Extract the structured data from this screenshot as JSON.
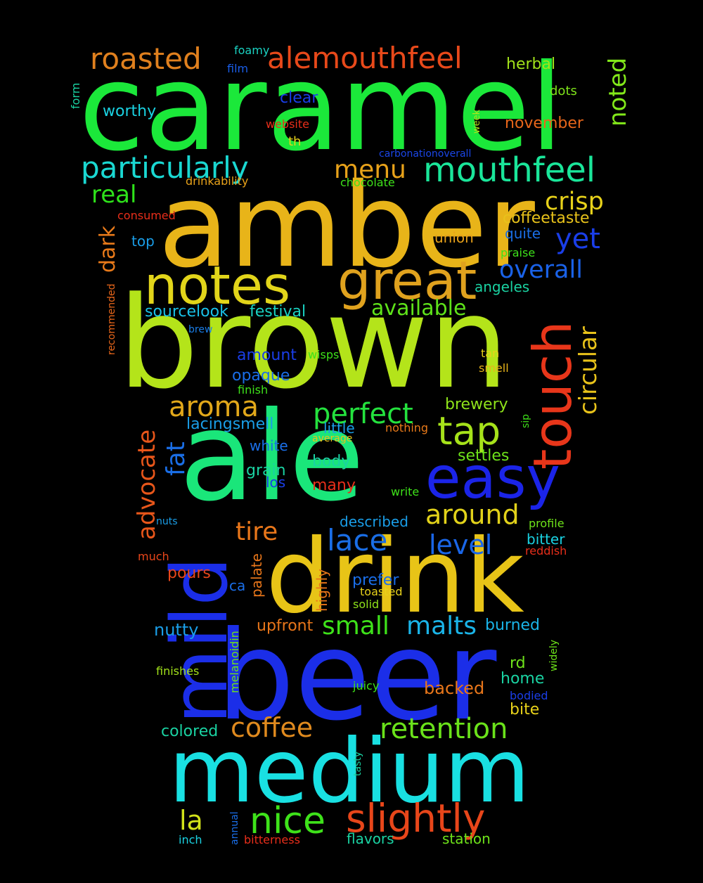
{
  "words": [
    {
      "text": "caramel",
      "color": "#1be83a"
    },
    {
      "text": "amber",
      "color": "#e8b419"
    },
    {
      "text": "brown",
      "color": "#b4e41a"
    },
    {
      "text": "ale",
      "color": "#1ae67a"
    },
    {
      "text": "drink",
      "color": "#e8c417"
    },
    {
      "text": "beer",
      "color": "#1b2ee8"
    },
    {
      "text": "medium",
      "color": "#19e0e2"
    },
    {
      "text": "mild",
      "color": "#1b2ee8"
    },
    {
      "text": "notes",
      "color": "#e2d51a"
    },
    {
      "text": "great",
      "color": "#e0a21e"
    },
    {
      "text": "touch",
      "color": "#e8361a"
    },
    {
      "text": "easy",
      "color": "#1b24e8"
    },
    {
      "text": "tap",
      "color": "#a6e21a"
    },
    {
      "text": "roasted",
      "color": "#e0801e"
    },
    {
      "text": "alemouthfeel",
      "color": "#e8491a"
    },
    {
      "text": "mouthfeel",
      "color": "#1ae69a"
    },
    {
      "text": "particularly",
      "color": "#1ad8d2"
    },
    {
      "text": "slightly",
      "color": "#e8461a"
    },
    {
      "text": "retention",
      "color": "#6ae21a"
    },
    {
      "text": "coffee",
      "color": "#e08a1e"
    },
    {
      "text": "nice",
      "color": "#3ee21a"
    },
    {
      "text": "aroma",
      "color": "#e2a81a"
    },
    {
      "text": "perfect",
      "color": "#24e23e"
    },
    {
      "text": "around",
      "color": "#e2d21a"
    },
    {
      "text": "lace",
      "color": "#1a6ee6"
    },
    {
      "text": "level",
      "color": "#1a66e8"
    },
    {
      "text": "menu",
      "color": "#e8a21a"
    },
    {
      "text": "overall",
      "color": "#1a62e8"
    },
    {
      "text": "crisp",
      "color": "#e8d21a"
    },
    {
      "text": "yet",
      "color": "#1a3ee8"
    },
    {
      "text": "noted",
      "color": "#82e81a"
    },
    {
      "text": "circular",
      "color": "#e8c21a"
    },
    {
      "text": "available",
      "color": "#5ee21a"
    },
    {
      "text": "advocate",
      "color": "#e8561a"
    },
    {
      "text": "fat",
      "color": "#1a6ee6"
    },
    {
      "text": "dark",
      "color": "#e87a1a"
    },
    {
      "text": "real",
      "color": "#2ee21a"
    },
    {
      "text": "tire",
      "color": "#e8761a"
    },
    {
      "text": "small",
      "color": "#3ee21a"
    },
    {
      "text": "malts",
      "color": "#1ab4e8"
    },
    {
      "text": "la",
      "color": "#d2e21a"
    },
    {
      "text": "herbal",
      "color": "#a2e21a"
    },
    {
      "text": "worthy",
      "color": "#1ad2e2"
    },
    {
      "text": "foamy",
      "color": "#1ad2c2"
    },
    {
      "text": "film",
      "color": "#1a5ee8"
    },
    {
      "text": "clear",
      "color": "#1a3ee8"
    },
    {
      "text": "website",
      "color": "#e82e1a"
    },
    {
      "text": "th",
      "color": "#e8d21a"
    },
    {
      "text": "dots",
      "color": "#7ee21a"
    },
    {
      "text": "november",
      "color": "#e8661a"
    },
    {
      "text": "week",
      "color": "#b4e21a"
    },
    {
      "text": "form",
      "color": "#1ad2a2"
    },
    {
      "text": "carbonationoverall",
      "color": "#1a46e8"
    },
    {
      "text": "chocolate",
      "color": "#3ee21a"
    },
    {
      "text": "drinkability",
      "color": "#e8a21a"
    },
    {
      "text": "coffeetaste",
      "color": "#e8c21a"
    },
    {
      "text": "consumed",
      "color": "#e82e1a"
    },
    {
      "text": "quite",
      "color": "#1a6ee6"
    },
    {
      "text": "top",
      "color": "#1a9ee8"
    },
    {
      "text": "union",
      "color": "#e8a21a"
    },
    {
      "text": "praise",
      "color": "#3ee21a"
    },
    {
      "text": "angeles",
      "color": "#1ad2a2"
    },
    {
      "text": "recommended",
      "color": "#e8661a"
    },
    {
      "text": "sourcelook",
      "color": "#1ac2e8"
    },
    {
      "text": "festival",
      "color": "#1ad2c2"
    },
    {
      "text": "brew",
      "color": "#1a7ee8"
    },
    {
      "text": "amount",
      "color": "#1a3ee8"
    },
    {
      "text": "wisps",
      "color": "#3ee21a"
    },
    {
      "text": "tan",
      "color": "#e8d21a"
    },
    {
      "text": "smell",
      "color": "#e8b41a"
    },
    {
      "text": "opaque",
      "color": "#1a6ee8"
    },
    {
      "text": "finish",
      "color": "#3ee21a"
    },
    {
      "text": "brewery",
      "color": "#8ee21a"
    },
    {
      "text": "sip",
      "color": "#3ee21a"
    },
    {
      "text": "lacingsmell",
      "color": "#1a9ee8"
    },
    {
      "text": "little",
      "color": "#1a9ee8"
    },
    {
      "text": "nothing",
      "color": "#e87a1a"
    },
    {
      "text": "white",
      "color": "#1a6ee8"
    },
    {
      "text": "average",
      "color": "#e8c21a"
    },
    {
      "text": "settles",
      "color": "#6ee21a"
    },
    {
      "text": "grain",
      "color": "#1ad2a2"
    },
    {
      "text": "body",
      "color": "#1ad2a2"
    },
    {
      "text": "los",
      "color": "#1a3ee8"
    },
    {
      "text": "many",
      "color": "#e82e1a"
    },
    {
      "text": "write",
      "color": "#3ee21a"
    },
    {
      "text": "nuts",
      "color": "#1a9ee8"
    },
    {
      "text": "described",
      "color": "#1a9ee8"
    },
    {
      "text": "profile",
      "color": "#6ee21a"
    },
    {
      "text": "bitter",
      "color": "#1ad2e2"
    },
    {
      "text": "reddish",
      "color": "#e82e1a"
    },
    {
      "text": "much",
      "color": "#e8461a"
    },
    {
      "text": "pours",
      "color": "#e8461a"
    },
    {
      "text": "palate",
      "color": "#e8761a"
    },
    {
      "text": "ca",
      "color": "#1a6ee8"
    },
    {
      "text": "highly",
      "color": "#e8761a"
    },
    {
      "text": "prefer",
      "color": "#1a6ee8"
    },
    {
      "text": "toasted",
      "color": "#e8d21a"
    },
    {
      "text": "solid",
      "color": "#8ee21a"
    },
    {
      "text": "nutty",
      "color": "#1a9ee8"
    },
    {
      "text": "melanoidin",
      "color": "#6ee21a"
    },
    {
      "text": "upfront",
      "color": "#e8761a"
    },
    {
      "text": "burned",
      "color": "#1ab4e8"
    },
    {
      "text": "widely",
      "color": "#6ee21a"
    },
    {
      "text": "finishes",
      "color": "#a2e21a"
    },
    {
      "text": "rd",
      "color": "#6ee21a"
    },
    {
      "text": "home",
      "color": "#1ad2a2"
    },
    {
      "text": "juicy",
      "color": "#3ee21a"
    },
    {
      "text": "backed",
      "color": "#e8761a"
    },
    {
      "text": "bodied",
      "color": "#1a3ee8"
    },
    {
      "text": "bite",
      "color": "#e8d21a"
    },
    {
      "text": "colored",
      "color": "#1ad2a2"
    },
    {
      "text": "tasty",
      "color": "#1ad2a2"
    },
    {
      "text": "annual",
      "color": "#1a6ee8"
    },
    {
      "text": "inch",
      "color": "#1ad2e2"
    },
    {
      "text": "bitterness",
      "color": "#e82e1a"
    },
    {
      "text": "flavors",
      "color": "#1ad2a2"
    },
    {
      "text": "station",
      "color": "#6ee21a"
    }
  ]
}
